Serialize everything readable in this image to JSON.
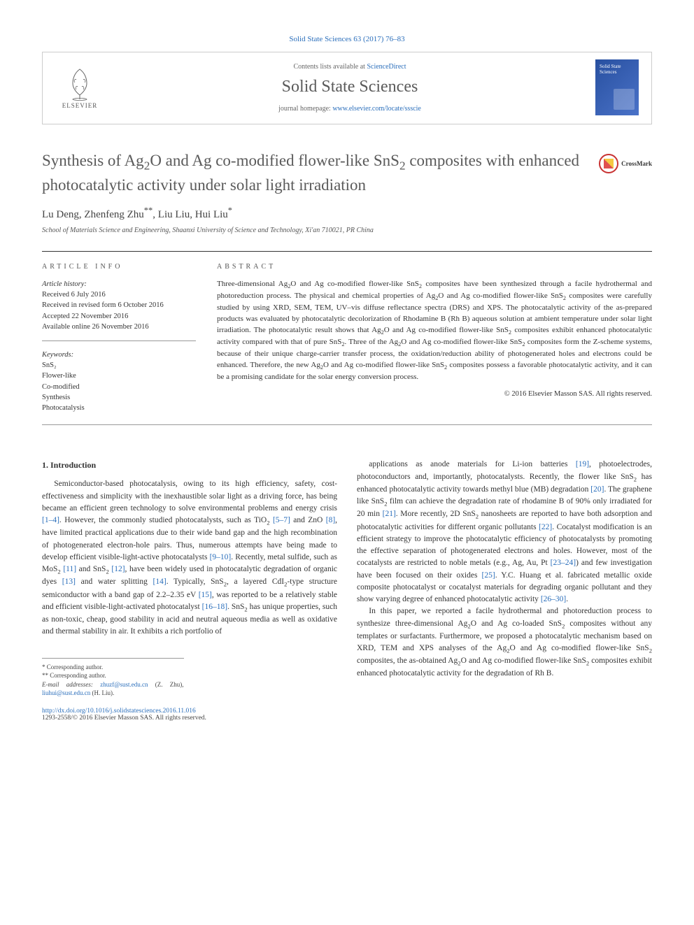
{
  "journal_ref": "Solid State Sciences 63 (2017) 76–83",
  "header": {
    "contents_prefix": "Contents lists available at ",
    "contents_link": "ScienceDirect",
    "journal_title": "Solid State Sciences",
    "homepage_prefix": "journal homepage: ",
    "homepage_link": "www.elsevier.com/locate/ssscie",
    "elsevier_label": "ELSEVIER",
    "cover_text": "Solid State Sciences"
  },
  "crossmark_label": "CrossMark",
  "title_html": "Synthesis of Ag<sub>2</sub>O and Ag co-modified flower-like SnS<sub>2</sub> composites with enhanced photocatalytic activity under solar light irradiation",
  "authors_html": "Lu Deng, Zhenfeng Zhu<sup>**</sup>, Liu Liu, Hui Liu<sup>*</sup>",
  "affiliation": "School of Materials Science and Engineering, Shaanxi University of Science and Technology, Xi'an 710021, PR China",
  "article_info": {
    "label": "ARTICLE INFO",
    "history_label": "Article history:",
    "received": "Received 6 July 2016",
    "revised": "Received in revised form 6 October 2016",
    "accepted": "Accepted 22 November 2016",
    "online": "Available online 26 November 2016",
    "keywords_label": "Keywords:",
    "keywords": [
      "SnS₂",
      "Flower-like",
      "Co-modified",
      "Synthesis",
      "Photocatalysis"
    ]
  },
  "abstract": {
    "label": "ABSTRACT",
    "text_html": "Three-dimensional Ag<sub>2</sub>O and Ag co-modified flower-like SnS<sub>2</sub> composites have been synthesized through a facile hydrothermal and photoreduction process. The physical and chemical properties of Ag<sub>2</sub>O and Ag co-modified flower-like SnS<sub>2</sub> composites were carefully studied by using XRD, SEM, TEM, UV–vis diffuse reflectance spectra (DRS) and XPS. The photocatalytic activity of the as-prepared products was evaluated by photocatalytic decolorization of Rhodamine B (Rh B) aqueous solution at ambient temperature under solar light irradiation. The photocatalytic result shows that Ag<sub>2</sub>O and Ag co-modified flower-like SnS<sub>2</sub> composites exhibit enhanced photocatalytic activity compared with that of pure SnS<sub>2</sub>. Three of the Ag<sub>2</sub>O and Ag co-modified flower-like SnS<sub>2</sub> composites form the Z-scheme systems, because of their unique charge-carrier transfer process, the oxidation/reduction ability of photogenerated holes and electrons could be enhanced. Therefore, the new Ag<sub>2</sub>O and Ag co-modified flower-like SnS<sub>2</sub> composites possess a favorable photocatalytic activity, and it can be a promising candidate for the solar energy conversion process.",
    "copyright": "© 2016 Elsevier Masson SAS. All rights reserved."
  },
  "body": {
    "section_heading": "1. Introduction",
    "col1_html": "Semiconductor-based photocatalysis, owing to its high efficiency, safety, cost-effectiveness and simplicity with the inexhaustible solar light as a driving force, has being became an efficient green technology to solve environmental problems and energy crisis <a href='#'>[1–4]</a>. However, the commonly studied photocatalysts, such as TiO<sub>2</sub> <a href='#'>[5–7]</a> and ZnO <a href='#'>[8]</a>, have limited practical applications due to their wide band gap and the high recombination of photogenerated electron-hole pairs. Thus, numerous attempts have being made to develop efficient visible-light-active photocatalysts <a href='#'>[9–10]</a>. Recently, metal sulfide, such as MoS<sub>2</sub> <a href='#'>[11]</a> and SnS<sub>2</sub> <a href='#'>[12]</a>, have been widely used in photocatalytic degradation of organic dyes <a href='#'>[13]</a> and water splitting <a href='#'>[14]</a>. Typically, SnS<sub>2</sub>, a layered CdI<sub>2</sub>-type structure semiconductor with a band gap of 2.2–2.35 eV <a href='#'>[15]</a>, was reported to be a relatively stable and efficient visible-light-activated photocatalyst <a href='#'>[16–18]</a>. SnS<sub>2</sub> has unique properties, such as non-toxic, cheap, good stability in acid and neutral aqueous media as well as oxidative and thermal stability in air. It exhibits a rich portfolio of",
    "col2_p1_html": "applications as anode materials for Li-ion batteries <a href='#'>[19]</a>, photoelectrodes, photoconductors and, importantly, photocatalysts. Recently, the flower like SnS<sub>2</sub> has enhanced photocatalytic activity towards methyl blue (MB) degradation <a href='#'>[20]</a>. The graphene like SnS<sub>2</sub> film can achieve the degradation rate of rhodamine B of 90% only irradiated for 20 min <a href='#'>[21]</a>. More recently, 2D SnS<sub>2</sub> nanosheets are reported to have both adsorption and photocatalytic activities for different organic pollutants <a href='#'>[22]</a>. Cocatalyst modification is an efficient strategy to improve the photocatalytic efficiency of photocatalysts by promoting the effective separation of photogenerated electrons and holes. However, most of the cocatalysts are restricted to noble metals (e.g., Ag, Au, Pt <a href='#'>[23–24]</a>) and few investigation have been focused on their oxides <a href='#'>[25]</a>. Y.C. Huang et al. fabricated metallic oxide composite photocatalyst or cocatalyst materials for degrading organic pollutant and they show varying degree of enhanced photocatalytic activity <a href='#'>[26–30]</a>.",
    "col2_p2_html": "In this paper, we reported a facile hydrothermal and photoreduction process to synthesize three-dimensional Ag<sub>2</sub>O and Ag co-loaded SnS<sub>2</sub> composites without any templates or surfactants. Furthermore, we proposed a photocatalytic mechanism based on XRD, TEM and XPS analyses of the Ag<sub>2</sub>O and Ag co-modified flower-like SnS<sub>2</sub> composites, the as-obtained Ag<sub>2</sub>O and Ag co-modified flower-like SnS<sub>2</sub> composites exhibit enhanced photocatalytic activity for the degradation of Rh B."
  },
  "footnotes": {
    "corr1": "* Corresponding author.",
    "corr2": "** Corresponding author.",
    "emails_prefix": "E-mail addresses: ",
    "email1": "zhuzf@sust.edu.cn",
    "email1_name": " (Z. Zhu), ",
    "email2": "liuhui@sust.edu.cn",
    "email2_name": " (H. Liu)."
  },
  "doi": {
    "link": "http://dx.doi.org/10.1016/j.solidstatesciences.2016.11.016",
    "issn_line": "1293-2558/© 2016 Elsevier Masson SAS. All rights reserved."
  },
  "colors": {
    "link": "#2a6ebb",
    "rule": "#999999",
    "text": "#333333"
  }
}
